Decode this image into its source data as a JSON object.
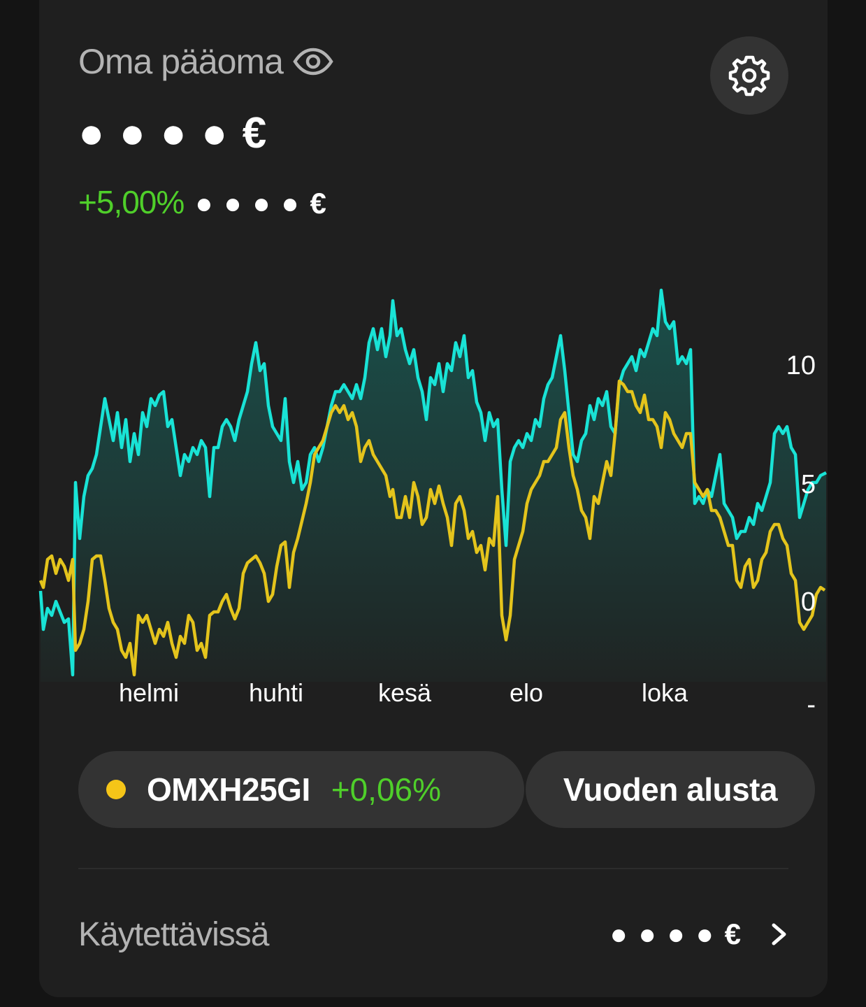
{
  "header": {
    "title": "Oma pääoma",
    "balance": "● ● ● ● €",
    "change_percent": "+5,00%",
    "change_amount": "● ● ● ● €"
  },
  "chart_data": {
    "type": "line",
    "x": [
      "helmi",
      "huhti",
      "kesä",
      "elo",
      "loka"
    ],
    "y_ticks": [
      "10",
      "5",
      "0",
      "-"
    ],
    "series": [
      {
        "color": "#19e3d6"
      },
      {
        "color": "#e4c41c"
      }
    ]
  },
  "benchmark": {
    "color": "#f5c518",
    "name": "OMXH25GI",
    "change": "+0,06%"
  },
  "period": {
    "label": "Vuoden alusta"
  },
  "available": {
    "label": "Käytettävissä",
    "value": "● ● ● ● €"
  },
  "colors": {
    "positive": "#4fcf2a",
    "portfolio_line": "#19e3d6",
    "index_line": "#e4c41c"
  }
}
